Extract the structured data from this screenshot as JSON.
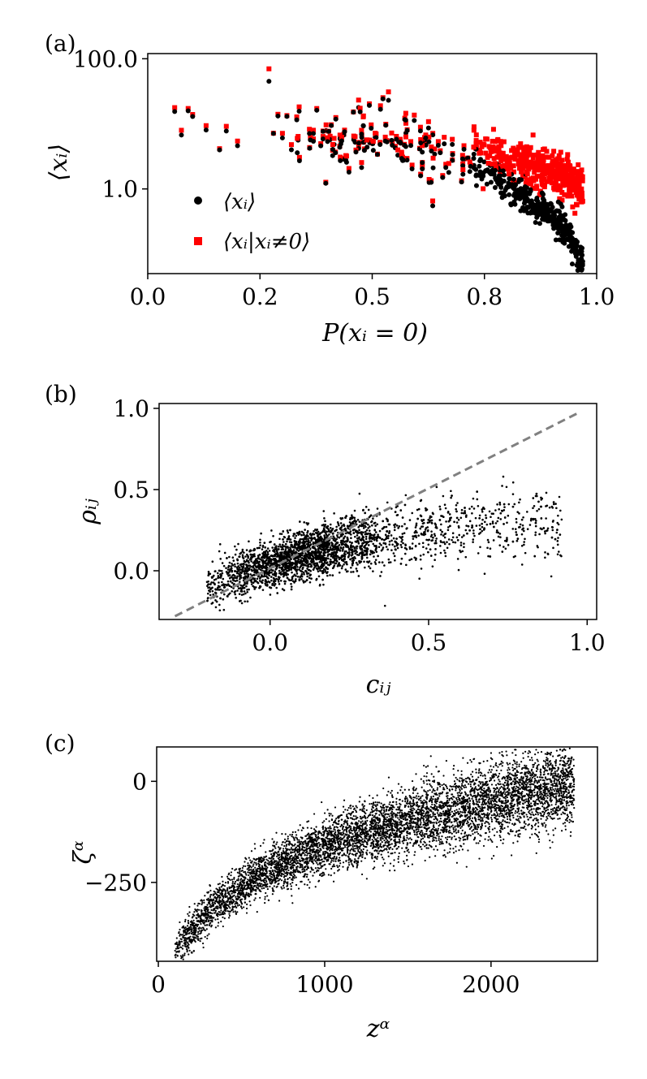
{
  "chart_data": [
    {
      "panel": "(a)",
      "type": "scatter",
      "xlabel": "P(xᵢ = 0)",
      "ylabel": "⟨xᵢ⟩",
      "xlim": [
        0.0,
        1.0
      ],
      "ylim": [
        0.05,
        120
      ],
      "yscale": "log",
      "xticks": [
        0.0,
        0.25,
        0.5,
        0.75,
        1.0
      ],
      "xtick_labels": [
        "0.0",
        "0.2",
        "0.5",
        "0.8",
        "1.0"
      ],
      "yticks": [
        1.0,
        100.0
      ],
      "ytick_labels": [
        "1.0",
        "100.0"
      ],
      "legend_position": "lower-left",
      "series": [
        {
          "name": "⟨xᵢ⟩",
          "color": "#000000",
          "marker": "circle",
          "trend": [
            [
              0.06,
              12
            ],
            [
              0.08,
              7
            ],
            [
              0.12,
              10
            ],
            [
              0.15,
              7
            ],
            [
              0.25,
              8
            ],
            [
              0.35,
              6
            ],
            [
              0.45,
              6
            ],
            [
              0.55,
              5
            ],
            [
              0.65,
              3.5
            ],
            [
              0.75,
              1.8
            ],
            [
              0.85,
              0.6
            ],
            [
              0.92,
              0.3
            ],
            [
              0.96,
              0.08
            ]
          ]
        },
        {
          "name": "⟨xᵢ|xᵢ≠0⟩",
          "color": "#ff0000",
          "marker": "square",
          "trend": [
            [
              0.06,
              12
            ],
            [
              0.08,
              7
            ],
            [
              0.12,
              10
            ],
            [
              0.15,
              7
            ],
            [
              0.25,
              9
            ],
            [
              0.35,
              9
            ],
            [
              0.45,
              8
            ],
            [
              0.55,
              8
            ],
            [
              0.65,
              8
            ],
            [
              0.75,
              4
            ],
            [
              0.85,
              2.2
            ],
            [
              0.92,
              1.7
            ],
            [
              0.96,
              1.0
            ]
          ]
        }
      ]
    },
    {
      "panel": "(b)",
      "type": "scatter",
      "xlabel": "cᵢⱼ",
      "ylabel": "ρᵢⱼ",
      "xlim": [
        -0.35,
        1.03
      ],
      "ylim": [
        -0.3,
        1.03
      ],
      "xticks": [
        0.0,
        0.5,
        1.0
      ],
      "xtick_labels": [
        "0.0",
        "0.5",
        "1.0"
      ],
      "yticks": [
        0.0,
        0.5,
        1.0
      ],
      "ytick_labels": [
        "0.0",
        "0.5",
        "1.0"
      ],
      "series": [
        {
          "color": "#000000",
          "marker": "point",
          "trend": [
            [
              -0.2,
              -0.1
            ],
            [
              0.0,
              0.05
            ],
            [
              0.2,
              0.15
            ],
            [
              0.4,
              0.22
            ],
            [
              0.6,
              0.26
            ],
            [
              0.9,
              0.3
            ]
          ]
        }
      ],
      "reference_line": {
        "style": "dashed",
        "color": "#808080",
        "x": [
          -0.3,
          0.98
        ],
        "y": [
          -0.28,
          0.98
        ]
      }
    },
    {
      "panel": "(c)",
      "type": "scatter",
      "xlabel": "zᵅ",
      "ylabel": "ζᵅ",
      "xlim": [
        -10,
        2640
      ],
      "ylim": [
        -445,
        85
      ],
      "xticks": [
        0,
        1000,
        2000
      ],
      "xtick_labels": [
        "0",
        "1000",
        "2000"
      ],
      "yticks": [
        0,
        -250
      ],
      "ytick_labels": [
        "0",
        "−250"
      ],
      "series": [
        {
          "color": "#000000",
          "marker": "point",
          "trend": [
            [
              100,
              -420
            ],
            [
              300,
              -320
            ],
            [
              600,
              -230
            ],
            [
              1000,
              -160
            ],
            [
              1500,
              -100
            ],
            [
              2000,
              -50
            ],
            [
              2500,
              -5
            ]
          ]
        }
      ]
    }
  ]
}
